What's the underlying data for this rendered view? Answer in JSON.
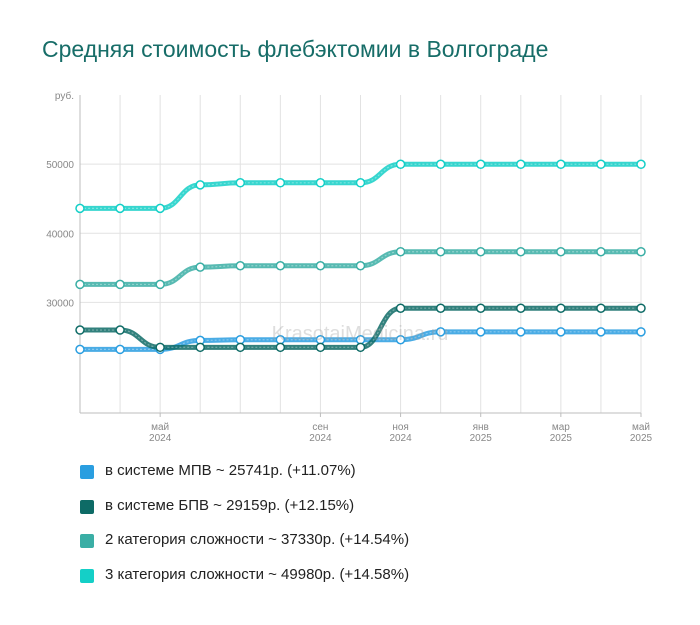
{
  "title": "Средняя стоимость флебэктомии в Волгограде",
  "watermark": "KrasotaiMedicina.ru",
  "chart_data": {
    "type": "line",
    "ylabel": "руб.",
    "ylim": [
      14000,
      60000
    ],
    "yticks": [
      30000,
      40000,
      50000
    ],
    "ytick_labels": [
      "30000",
      "40000",
      "50000"
    ],
    "x": [
      "2024-03",
      "2024-04",
      "2024-05",
      "2024-06",
      "2024-07",
      "2024-08",
      "2024-09",
      "2024-10",
      "2024-11",
      "2024-12",
      "2025-01",
      "2025-02",
      "2025-03",
      "2025-04",
      "2025-05"
    ],
    "xticks": [
      {
        "month": "май",
        "year": "2024",
        "at": "2024-05"
      },
      {
        "month": "сен",
        "year": "2024",
        "at": "2024-09"
      },
      {
        "month": "ноя",
        "year": "2024",
        "at": "2024-11"
      },
      {
        "month": "янв",
        "year": "2025",
        "at": "2025-01"
      },
      {
        "month": "мар",
        "year": "2025",
        "at": "2025-03"
      },
      {
        "month": "май",
        "year": "2025",
        "at": "2025-05"
      }
    ],
    "series": [
      {
        "name": "в системе МПВ",
        "color": "#2a9ee0",
        "values": [
          23200,
          23200,
          23200,
          24500,
          24600,
          24600,
          24600,
          24600,
          24600,
          25741,
          25741,
          25741,
          25741,
          25741,
          25741
        ]
      },
      {
        "name": "в системе БПВ",
        "color": "#0e6b66",
        "values": [
          26000,
          26000,
          23500,
          23500,
          23500,
          23500,
          23500,
          23500,
          29159,
          29159,
          29159,
          29159,
          29159,
          29159,
          29159
        ]
      },
      {
        "name": "2 категория сложности",
        "color": "#3aaea5",
        "values": [
          32600,
          32600,
          32600,
          35100,
          35300,
          35300,
          35300,
          35300,
          37330,
          37330,
          37330,
          37330,
          37330,
          37330,
          37330
        ]
      },
      {
        "name": "3 категория сложности",
        "color": "#14cfc7",
        "values": [
          43600,
          43600,
          43600,
          47000,
          47300,
          47300,
          47300,
          47300,
          49980,
          49980,
          49980,
          49980,
          49980,
          49980,
          49980
        ]
      }
    ]
  },
  "legend": [
    {
      "label": "в системе МПВ ~ 25741р. (+11.07%)",
      "color": "#2a9ee0"
    },
    {
      "label": "в системе БПВ ~ 29159р. (+12.15%)",
      "color": "#0e6b66"
    },
    {
      "label": "2 категория сложности ~ 37330р. (+14.54%)",
      "color": "#3aaea5"
    },
    {
      "label": "3 категория сложности ~ 49980р. (+14.58%)",
      "color": "#14cfc7"
    }
  ]
}
